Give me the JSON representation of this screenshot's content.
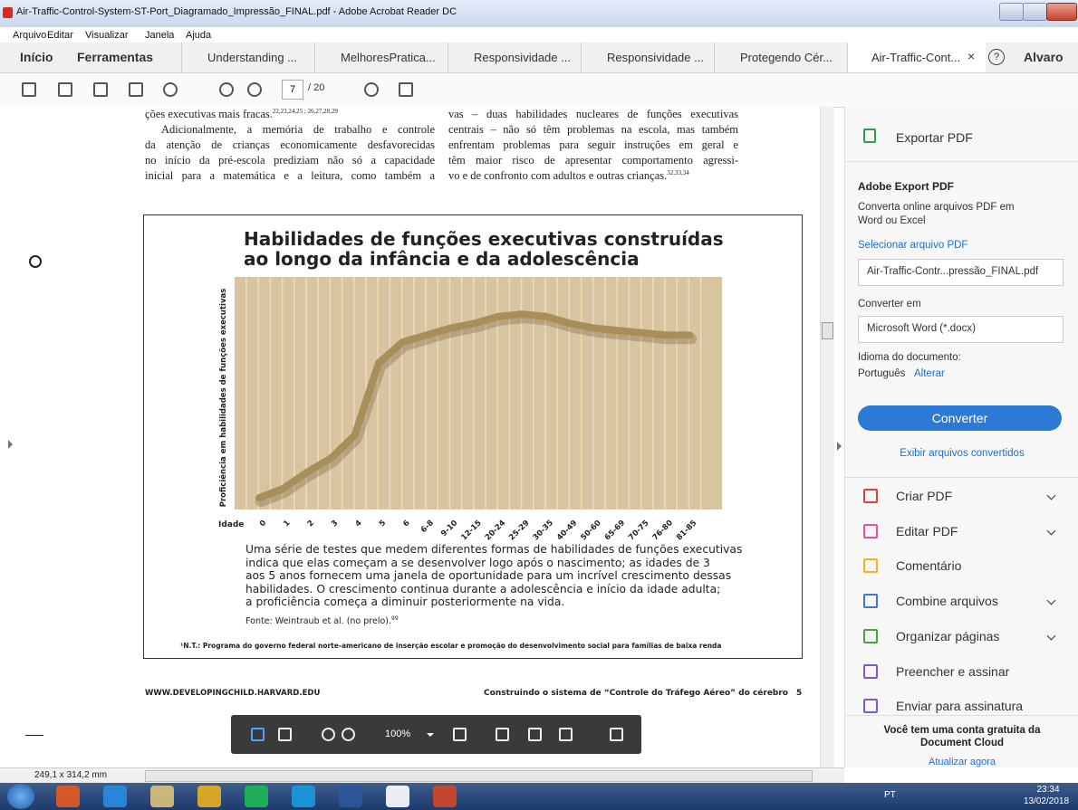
{
  "window": {
    "title": "Air-Traffic-Control-System-ST-Port_Diagramado_Impressão_FINAL.pdf - Adobe Acrobat Reader DC"
  },
  "menu": [
    "Arquivo",
    "Editar",
    "Visualizar",
    "Janela",
    "Ajuda"
  ],
  "tabs": {
    "home": "Início",
    "tools": "Ferramentas",
    "documents": [
      "Understanding ...",
      "MelhoresPratica...",
      "Responsividade ...",
      "Responsividade ...",
      "Protegendo Cér...",
      "Air-Traffic-Cont..."
    ],
    "close": "×",
    "help": "?",
    "user": "Alvaro"
  },
  "toolbar": {
    "page": "7",
    "total": "/ 20"
  },
  "document": {
    "left_column": [
      "ções executivas mais fracas.",
      "Adicionalmente, a memória de trabalho e controle",
      "da atenção de crianças economicamente desfavorecidas",
      "no início da pré-escola prediziam não só a capacidade",
      "inicial para a matemática e a leitura, como também a"
    ],
    "left_ref": "22,23,24,25 ; 26,27,28,29",
    "right_column": [
      "vas – duas habilidades nucleares de funções executivas",
      "centrais – não só têm problemas na escola, mas também",
      "enfrentam problemas para seguir instruções em geral e",
      "têm maior risco de apresentar comportamento agressi-",
      "vo e de confronto com adultos e outras crianças."
    ],
    "right_ref": "32,33,34",
    "footer_url": "WWW.DEVELOPINGCHILD.HARVARD.EDU",
    "footer_title": "Construindo o sistema de “Controle do Tráfego Aéreo” do cérebro",
    "page_number": "5"
  },
  "chart_data": {
    "type": "line",
    "title": [
      "Habilidades de funções executivas construídas",
      "ao longo da infância e da adolescência"
    ],
    "ylabel": "Proficiência em habilidades de funções executivas",
    "xlabel": "Idade",
    "categories": [
      "0",
      "1",
      "2",
      "3",
      "4",
      "5",
      "6",
      "6-8",
      "9-10",
      "12-15",
      "20-24",
      "25-29",
      "30-35",
      "40-49",
      "50-60",
      "65-69",
      "70-75",
      "76-80",
      "81-85"
    ],
    "values": [
      5,
      9,
      16,
      22,
      32,
      63,
      72,
      75,
      78,
      80,
      83,
      84,
      83,
      80,
      78,
      77,
      76,
      75,
      75
    ],
    "color": "#a88e58",
    "ylim": [
      0,
      100
    ],
    "caption": [
      "Uma série de testes que medem diferentes formas de habilidades de funções executivas",
      "indica que elas começam a se desenvolver logo após o nascimento; as idades de 3",
      "aos 5 anos fornecem uma janela de oportunidade para um incrível crescimento dessas",
      "habilidades. O crescimento continua durante a adolescência e início da idade adulta;",
      "a proficiência começa a diminuir posteriormente na vida."
    ],
    "source": "Fonte: Weintraub et al. (no prelo).",
    "source_ref": "99",
    "footnote": "¹N.T.: Programa do governo federal norte-americano de inserção escolar e promoção do desenvolvimento social para famílias de baixa renda"
  },
  "float_toolbar": {
    "zoom": "100%"
  },
  "panel": {
    "export": "Exportar PDF",
    "heading": "Adobe Export PDF",
    "description": "Converta online arquivos PDF em Word ou Excel",
    "select_file": "Selecionar arquivo PDF",
    "file": "Air-Traffic-Contr...pressão_FINAL.pdf",
    "convert_to": "Converter em",
    "format": "Microsoft Word (*.docx)",
    "language_label": "Idioma do documento:",
    "language": "Português",
    "change": "Alterar",
    "convert": "Converter",
    "view_converted": "Exibir arquivos convertidos",
    "tools": [
      {
        "label": "Criar PDF",
        "expandable": true,
        "color": "#e0403a"
      },
      {
        "label": "Editar PDF",
        "expandable": true,
        "color": "#e8509a"
      },
      {
        "label": "Comentário",
        "expandable": false,
        "color": "#f2b620"
      },
      {
        "label": "Combine arquivos",
        "expandable": true,
        "color": "#3a78d8"
      },
      {
        "label": "Organizar páginas",
        "expandable": true,
        "color": "#41a640"
      },
      {
        "label": "Preencher e assinar",
        "expandable": false,
        "color": "#7a5cc8"
      },
      {
        "label": "Enviar para assinatura",
        "expandable": false,
        "color": "#7a5cc8"
      }
    ],
    "promo": "Você tem uma conta gratuita da Document Cloud",
    "upgrade": "Atualizar agora"
  },
  "status": {
    "size": "249,1 x 314,2 mm"
  },
  "taskbar": {
    "language": "PT",
    "time": "23:34",
    "date": "13/02/2018"
  }
}
